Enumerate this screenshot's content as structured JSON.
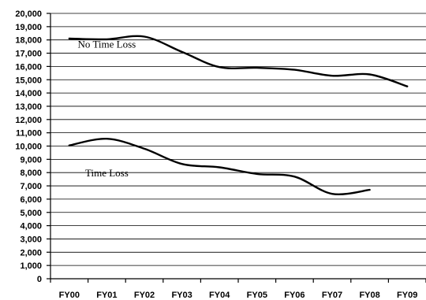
{
  "chart_data": {
    "type": "line",
    "title": "",
    "xlabel": "",
    "ylabel": "",
    "categories": [
      "FY00",
      "FY01",
      "FY02",
      "FY03",
      "FY04",
      "FY05",
      "FY06",
      "FY07",
      "FY08",
      "FY09"
    ],
    "ylim": [
      0,
      20000
    ],
    "ytick_step": 1000,
    "yticks": [
      "0",
      "1,000",
      "2,000",
      "3,000",
      "4,000",
      "5,000",
      "6,000",
      "7,000",
      "8,000",
      "9,000",
      "10,000",
      "11,000",
      "12,000",
      "13,000",
      "14,000",
      "15,000",
      "16,000",
      "17,000",
      "18,000",
      "19,000",
      "20,000"
    ],
    "grid": true,
    "legend": "none",
    "series": [
      {
        "values": [
          18100,
          18050,
          18250,
          17100,
          15950,
          15900,
          15750,
          15300,
          15400,
          14500
        ]
      },
      {
        "values": [
          10050,
          10550,
          9800,
          8650,
          8400,
          7900,
          7700,
          6400,
          6700,
          null
        ]
      }
    ],
    "annotations": [
      {
        "text": "No Time Loss",
        "series": 0,
        "category": "FY01",
        "y": 17650
      },
      {
        "text": "Time Loss",
        "series": 1,
        "category": "FY01",
        "y": 7950
      }
    ],
    "colors": {
      "line": "#000000",
      "grid": "#000000",
      "background": "#ffffff"
    }
  }
}
